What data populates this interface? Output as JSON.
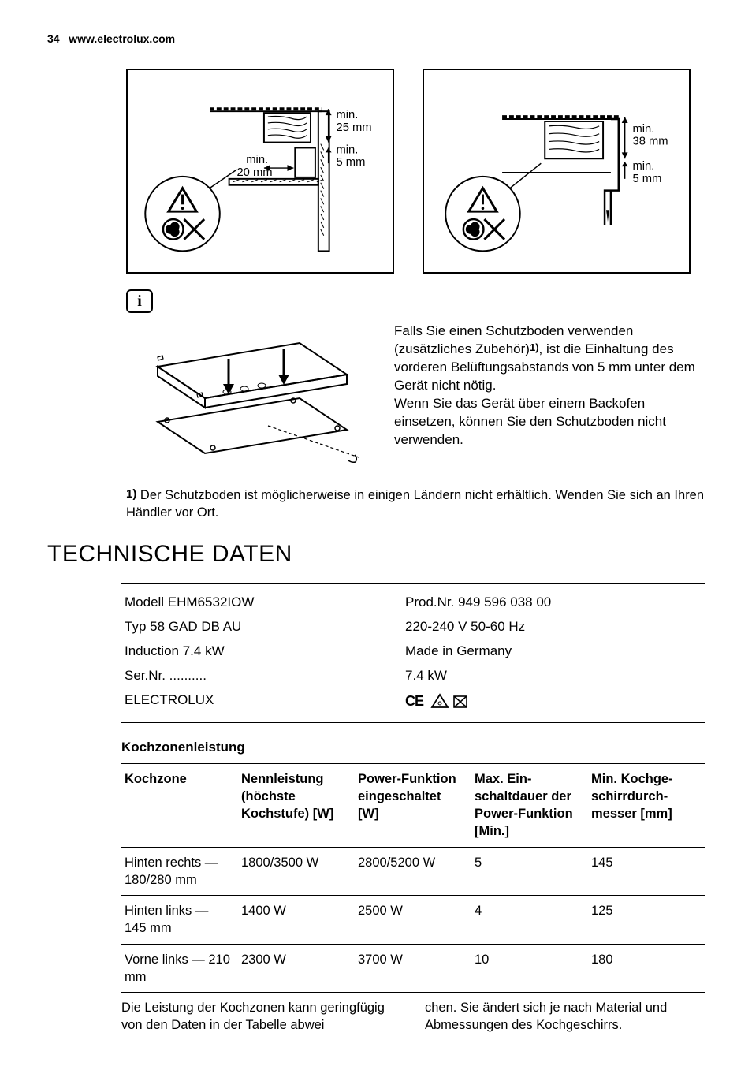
{
  "header": {
    "page_num": "34",
    "url": "www.electrolux.com"
  },
  "diagram_left": {
    "labels": {
      "top": "min.\n25 mm",
      "mid": "min.\n5 mm",
      "left": "min.\n20 mm"
    }
  },
  "diagram_right": {
    "labels": {
      "top": "min.\n38 mm",
      "mid": "min.\n5 mm"
    }
  },
  "protection_text": {
    "p1a": "Falls Sie einen Schutzboden verwenden (zusätzliches Zubehör)",
    "p1_sup": "1)",
    "p1b": ", ist die Einhaltung des vorderen Belüftungsabstands von 5 mm unter dem Gerät nicht nötig.",
    "p2": "Wenn Sie das Gerät über einem Backofen einsetzen, können Sie den Schutzboden nicht verwenden."
  },
  "footnote": {
    "num": "1)",
    "text": " Der Schutzboden ist möglicherweise in einigen Ländern nicht erhältlich. Wenden Sie sich an Ihren Händler vor Ort."
  },
  "section_title": "TECHNISCHE DATEN",
  "spec_rows": [
    {
      "left": "Modell EHM6532IOW",
      "right": "Prod.Nr. 949 596 038 00"
    },
    {
      "left": "Typ 58 GAD DB AU",
      "right": "220-240 V 50-60 Hz"
    },
    {
      "left": "Induction 7.4 kW",
      "right": "Made in Germany"
    },
    {
      "left": "Ser.Nr. ..........",
      "right": "7.4 kW"
    },
    {
      "left": "ELECTROLUX",
      "right": ""
    }
  ],
  "ce_line": "CE ⚠ ⌧",
  "subsection_title": "Kochzonenleistung",
  "zone_table": {
    "headers": [
      "Kochzone",
      "Nennleistung (höchste Kochstufe) [W]",
      "Power-Funk­tion einge­schaltet [W]",
      "Max. Ein­schaltdauer der Power-Funktion [Min.]",
      "Min. Kochge­schirrdurch­messer [mm]"
    ],
    "rows": [
      [
        "Hinten rechts —180/280 mm",
        "1800/3500 W",
        "2800/5200 W",
        "5",
        "145"
      ],
      [
        "Hinten links — 145 mm",
        "1400 W",
        "2500 W",
        "4",
        "125"
      ],
      [
        "Vorne links — 210 mm",
        "2300 W",
        "3700 W",
        "10",
        "180"
      ]
    ]
  },
  "bottom_note": {
    "left": "Die Leistung der Kochzonen kann geringfü­gig von den Daten in der Tabelle abwei­",
    "right": "chen. Sie ändert sich je nach Material und Abmessungen des Kochgeschirrs."
  },
  "colors": {
    "text": "#000000",
    "bg": "#ffffff",
    "border": "#000000"
  }
}
